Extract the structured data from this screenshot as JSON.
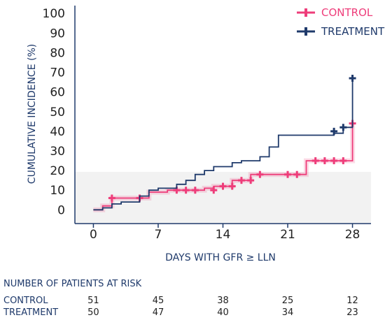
{
  "chart_data": {
    "type": "line",
    "ylabel": "CUMULATIVE INCIDENCE (%)",
    "xlabel": "DAYS WITH GFR ≥ LLN",
    "xticks": [
      0,
      7,
      14,
      21,
      28
    ],
    "yticks": [
      0,
      10,
      20,
      30,
      40,
      50,
      60,
      70,
      80,
      90,
      100
    ],
    "xlim": [
      -2,
      30
    ],
    "ylim": [
      -7,
      104
    ],
    "grid": false,
    "legend_position": "top-right",
    "series": [
      {
        "name": "CONTROL",
        "color": "#ee3d7a",
        "steps": [
          [
            0,
            0
          ],
          [
            1,
            0
          ],
          [
            1,
            2
          ],
          [
            2,
            2
          ],
          [
            2,
            6
          ],
          [
            5,
            6
          ],
          [
            6,
            6
          ],
          [
            6,
            9
          ],
          [
            8,
            9
          ],
          [
            8,
            10
          ],
          [
            12,
            10
          ],
          [
            12,
            11
          ],
          [
            13,
            11
          ],
          [
            13,
            12
          ],
          [
            15,
            12
          ],
          [
            15,
            15
          ],
          [
            17,
            15
          ],
          [
            17,
            18
          ],
          [
            23,
            18
          ],
          [
            23,
            25
          ],
          [
            28,
            25
          ],
          [
            28,
            44
          ]
        ],
        "censored": [
          [
            2,
            6
          ],
          [
            5,
            6
          ],
          [
            9,
            10
          ],
          [
            10,
            10
          ],
          [
            11,
            10
          ],
          [
            13,
            10
          ],
          [
            14,
            12
          ],
          [
            15,
            12
          ],
          [
            16,
            15
          ],
          [
            17,
            15
          ],
          [
            18,
            18
          ],
          [
            21,
            18
          ],
          [
            22,
            18
          ],
          [
            24,
            25
          ],
          [
            25,
            25
          ],
          [
            26,
            25
          ],
          [
            27,
            25
          ],
          [
            28,
            44
          ]
        ]
      },
      {
        "name": "TREATMENT",
        "color": "#1f3a6b",
        "steps": [
          [
            0,
            0
          ],
          [
            1,
            0
          ],
          [
            1,
            1
          ],
          [
            2,
            1
          ],
          [
            2,
            3
          ],
          [
            3,
            3
          ],
          [
            3,
            4
          ],
          [
            5,
            4
          ],
          [
            5,
            7
          ],
          [
            6,
            7
          ],
          [
            6,
            10
          ],
          [
            7,
            10
          ],
          [
            7,
            11
          ],
          [
            9,
            11
          ],
          [
            9,
            13
          ],
          [
            10,
            13
          ],
          [
            10,
            15
          ],
          [
            11,
            15
          ],
          [
            11,
            18
          ],
          [
            12,
            18
          ],
          [
            12,
            20
          ],
          [
            13,
            20
          ],
          [
            13,
            22
          ],
          [
            15,
            22
          ],
          [
            15,
            24
          ],
          [
            16,
            24
          ],
          [
            16,
            25
          ],
          [
            18,
            25
          ],
          [
            18,
            27
          ],
          [
            19,
            27
          ],
          [
            19,
            32
          ],
          [
            20,
            32
          ],
          [
            20,
            38
          ],
          [
            26,
            38
          ],
          [
            26,
            39
          ],
          [
            27,
            39
          ],
          [
            27,
            42
          ],
          [
            28,
            42
          ],
          [
            28,
            67
          ]
        ],
        "censored": [
          [
            26,
            40
          ],
          [
            27,
            42
          ],
          [
            28,
            67
          ]
        ]
      }
    ],
    "risk_table": {
      "title": "NUMBER OF PATIENTS AT RISK",
      "rows": [
        {
          "label": "CONTROL",
          "values": [
            51,
            45,
            38,
            25,
            12
          ]
        },
        {
          "label": "TREATMENT",
          "values": [
            50,
            47,
            40,
            34,
            23
          ]
        }
      ]
    }
  }
}
